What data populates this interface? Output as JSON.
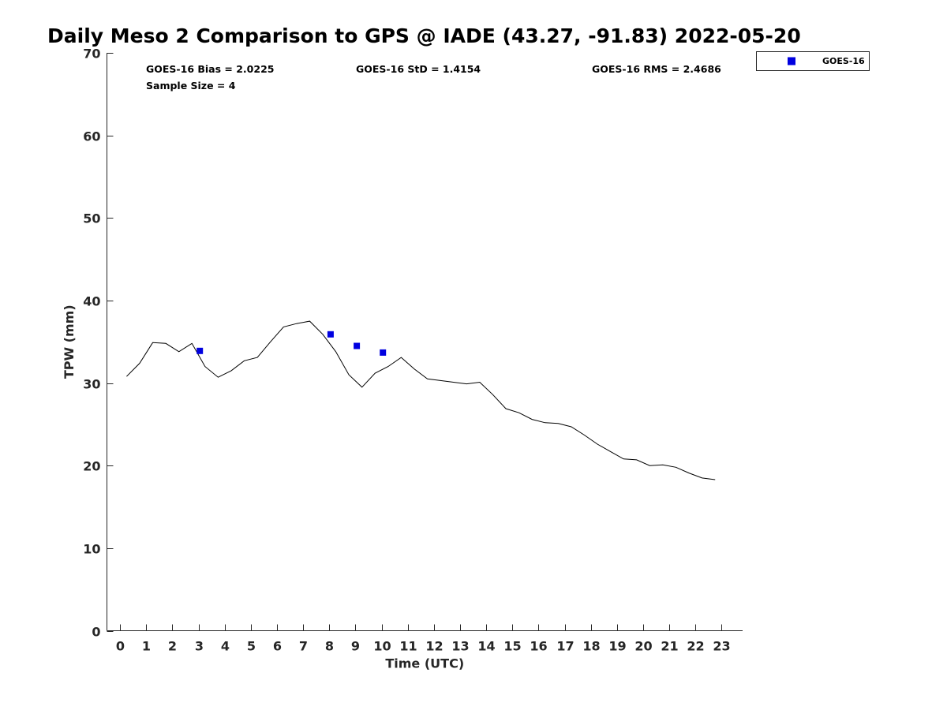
{
  "chart_data": {
    "type": "scatter",
    "title": "Daily Meso 2 Comparison to GPS @ IADE (43.27, -91.83) 2022-05-20",
    "xlabel": "Time (UTC)",
    "ylabel": "TPW (mm)",
    "xlim": [
      -0.5,
      23.8
    ],
    "ylim": [
      0,
      70
    ],
    "xticks": [
      0,
      1,
      2,
      3,
      4,
      5,
      6,
      7,
      8,
      9,
      10,
      11,
      12,
      13,
      14,
      15,
      16,
      17,
      18,
      19,
      20,
      21,
      22,
      23
    ],
    "yticks": [
      0,
      10,
      20,
      30,
      40,
      50,
      60,
      70
    ],
    "grid": false,
    "legend_position": "top-right, outside plot area",
    "stats": {
      "bias": "GOES-16 Bias = 2.0225",
      "std": "GOES-16 StD = 1.4154",
      "rms": "GOES-16 RMS = 2.4686",
      "sample": "Sample Size = 4"
    },
    "series": [
      {
        "type": "line",
        "color": "#000000",
        "x": [
          0.25,
          0.75,
          1.25,
          1.75,
          2.25,
          2.75,
          3.25,
          3.75,
          4.25,
          4.75,
          5.25,
          5.75,
          6.25,
          6.75,
          7.25,
          7.75,
          8.25,
          8.75,
          9.25,
          9.75,
          10.25,
          10.75,
          11.25,
          11.75,
          12.25,
          12.75,
          13.25,
          13.75,
          14.25,
          14.75,
          15.25,
          15.75,
          16.25,
          16.75,
          17.25,
          17.75,
          18.25,
          18.75,
          19.25,
          19.75,
          20.25,
          20.75,
          21.25,
          21.75,
          22.25,
          22.75
        ],
        "values": [
          30.8,
          32.4,
          34.9,
          34.8,
          33.8,
          34.8,
          32.0,
          30.7,
          31.5,
          32.7,
          33.1,
          35.0,
          36.8,
          37.2,
          37.5,
          35.9,
          33.8,
          31.0,
          29.5,
          31.2,
          32.0,
          33.1,
          31.7,
          30.5,
          30.3,
          30.1,
          29.9,
          30.1,
          28.6,
          26.9,
          26.4,
          25.6,
          25.2,
          25.1,
          24.7,
          23.7,
          22.6,
          21.7,
          20.8,
          20.7,
          20.0,
          20.1,
          19.8,
          19.1,
          18.5,
          18.3
        ]
      },
      {
        "type": "scatter",
        "name": "GOES-16",
        "color": "#0000e0",
        "x": [
          3.05,
          8.05,
          9.05,
          10.05
        ],
        "values": [
          33.9,
          35.9,
          34.5,
          33.7
        ]
      }
    ]
  }
}
